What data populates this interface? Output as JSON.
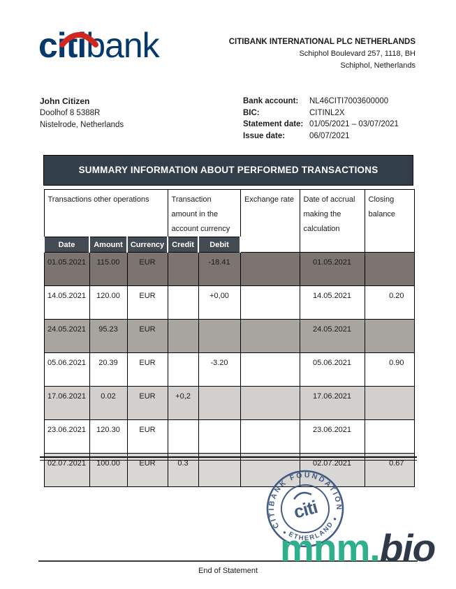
{
  "brand": {
    "logo_citi": "citi",
    "logo_bank": "bank",
    "blue": "#05386b",
    "red": "#d0281e"
  },
  "bank_header": {
    "name": "CITIBANK INTERNATIONAL PLC NETHERLANDS",
    "address_line1": "Schiphol Boulevard 257, 1118, BH",
    "address_line2": "Schiphol, Netherlands"
  },
  "customer": {
    "name": "John Citizen",
    "address_line1": "Doolhof 8  5388R",
    "address_line2": "Nistelrode, Netherlands"
  },
  "account_info": {
    "rows": [
      {
        "label": "Bank account:",
        "value": "NL46CITI7003600000"
      },
      {
        "label": "BIC:",
        "value": "CITINL2X"
      },
      {
        "label": "Statement date:",
        "value": "01/05/2021 – 03/07/2021"
      },
      {
        "label": "Issue date:",
        "value": "06/07/2021"
      }
    ]
  },
  "table": {
    "title": "SUMMARY INFORMATION ABOUT PERFORMED TRANSACTIONS",
    "group_headers": {
      "transactions": "Transactions other operations",
      "amount_in_currency": "Transaction amount in the account currency",
      "exchange_rate": "Exchange rate",
      "accrual_date": "Date of accrual making the calculation",
      "closing_balance": "Closing balance"
    },
    "sub_headers": {
      "date": "Date",
      "amount": "Amount",
      "currency": "Currency",
      "credit": "Credit",
      "debit": "Debit"
    },
    "rows": [
      {
        "date": "01.05.2021",
        "amount": "115.00",
        "currency": "EUR",
        "credit": "",
        "debit": "-18.41",
        "exchange_rate": "",
        "accrual_date": "01.05.2021",
        "closing_balance": "",
        "shade": "dark"
      },
      {
        "date": "14.05.2021",
        "amount": "120.00",
        "currency": "EUR",
        "credit": "",
        "debit": "+0,00",
        "exchange_rate": "",
        "accrual_date": "14.05.2021",
        "closing_balance": "0.20",
        "shade": "white"
      },
      {
        "date": "24.05.2021",
        "amount": "95.23",
        "currency": "EUR",
        "credit": "",
        "debit": "",
        "exchange_rate": "",
        "accrual_date": "24.05.2021",
        "closing_balance": "",
        "shade": "medium"
      },
      {
        "date": "05.06.2021",
        "amount": "20.39",
        "currency": "EUR",
        "credit": "",
        "debit": "-3.20",
        "exchange_rate": "",
        "accrual_date": "05.06.2021",
        "closing_balance": "0.90",
        "shade": "white"
      },
      {
        "date": "17.06.2021",
        "amount": "0.02",
        "currency": "EUR",
        "credit": "+0,2",
        "debit": "",
        "exchange_rate": "",
        "accrual_date": "17.06.2021",
        "closing_balance": "",
        "shade": "light"
      },
      {
        "date": "23.06.2021",
        "amount": "120.30",
        "currency": "EUR",
        "credit": "",
        "debit": "",
        "exchange_rate": "",
        "accrual_date": "23.06.2021",
        "closing_balance": "",
        "shade": "white"
      },
      {
        "date": "02.07.2021",
        "amount": "100.00",
        "currency": "EUR",
        "credit": "0.3",
        "debit": "",
        "exchange_rate": "",
        "accrual_date": "02.07.2021",
        "closing_balance": "0.67",
        "shade": "light2"
      }
    ]
  },
  "colors": {
    "title_bar_bg": "#333e4b",
    "subheader_bg": "#454b54",
    "row_shades": {
      "dark": "#7b7470",
      "medium": "#a8a4a0",
      "light": "#d2cfcc",
      "light2": "#d9d7d4",
      "white": "#ffffff"
    },
    "watermark_green": "#2eb08d",
    "watermark_dark": "#2e3a48",
    "stamp_navy": "#33517d"
  },
  "stamp": {
    "top_text": "CITIBANK FOUNDATION",
    "bottom_text": "NETHERLANDS",
    "center_text": "citi"
  },
  "watermark": {
    "green_part": "mnm.",
    "dark_part": "bio"
  },
  "footer": {
    "end_text": "End of Statement"
  }
}
